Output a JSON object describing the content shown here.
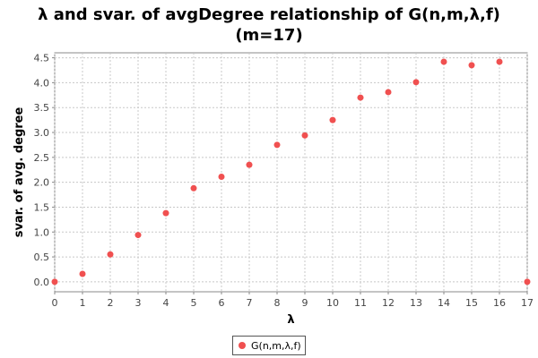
{
  "chart_data": {
    "type": "scatter",
    "title_line1": "λ and svar. of avgDegree relationship of G(n,m,λ,f)",
    "title_line2": "(m=17)",
    "xlabel": "λ",
    "ylabel": "svar. of avg. degree",
    "xlim": [
      0,
      17
    ],
    "ylim": [
      -0.2,
      4.6
    ],
    "x_ticks": [
      0,
      1,
      2,
      3,
      4,
      5,
      6,
      7,
      8,
      9,
      10,
      11,
      12,
      13,
      14,
      15,
      16,
      17
    ],
    "y_ticks": [
      0.0,
      0.5,
      1.0,
      1.5,
      2.0,
      2.5,
      3.0,
      3.5,
      4.0,
      4.5
    ],
    "y_tick_labels": [
      "0.0",
      "0.5",
      "1.0",
      "1.5",
      "2.0",
      "2.5",
      "3.0",
      "3.5",
      "4.0",
      "4.5"
    ],
    "grid": true,
    "legend_position": "bottom",
    "series": [
      {
        "name": "G(n,m,λ,f)",
        "color": "#f05050",
        "x": [
          0,
          1,
          2,
          3,
          4,
          5,
          6,
          7,
          8,
          9,
          10,
          11,
          12,
          13,
          14,
          15,
          16,
          17
        ],
        "y": [
          0.0,
          0.16,
          0.55,
          0.94,
          1.38,
          1.88,
          2.11,
          2.35,
          2.75,
          2.94,
          3.25,
          3.7,
          3.81,
          4.01,
          4.42,
          4.35,
          4.42,
          0.0
        ]
      }
    ]
  }
}
